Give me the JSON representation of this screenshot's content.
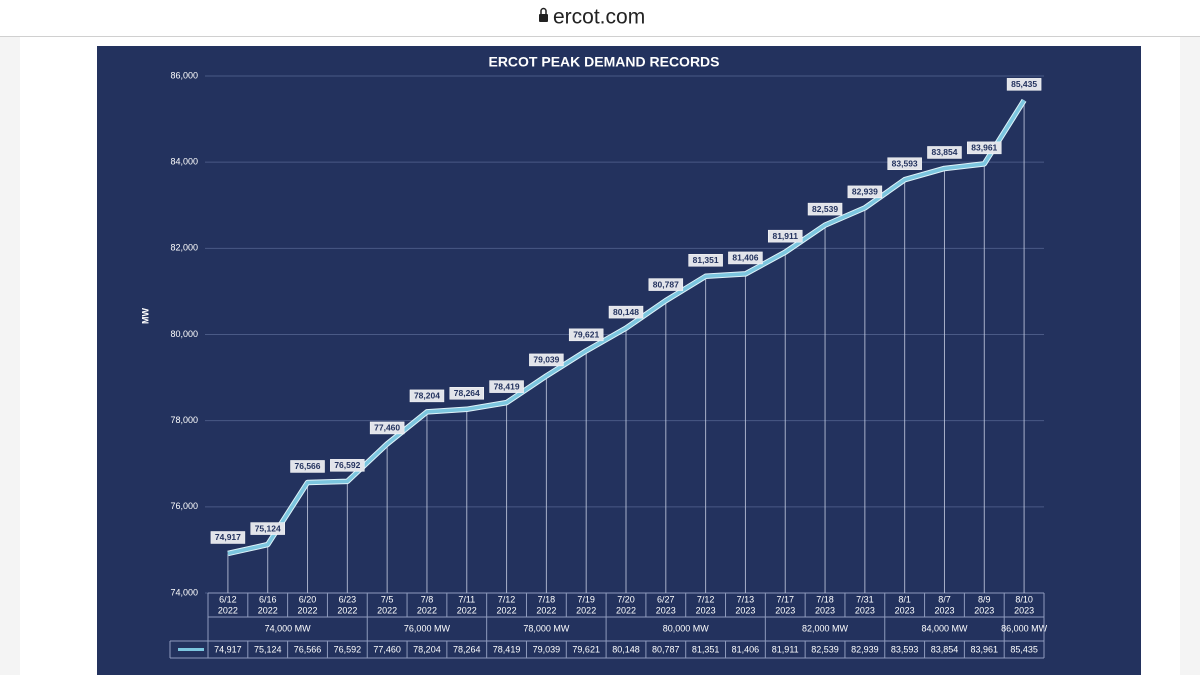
{
  "browser": {
    "url": "ercot.com"
  },
  "chart_data": {
    "type": "line",
    "title": "ERCOT PEAK DEMAND RECORDS",
    "ylabel": "MW",
    "categories": [
      "6/12",
      "6/16",
      "6/20",
      "6/23",
      "7/5",
      "7/8",
      "7/11",
      "7/12",
      "7/18",
      "7/19",
      "7/20",
      "6/27",
      "7/12",
      "7/13",
      "7/17",
      "7/18",
      "7/31",
      "8/1",
      "8/7",
      "8/9",
      "8/10"
    ],
    "category_years": [
      "2022",
      "2022",
      "2022",
      "2022",
      "2022",
      "2022",
      "2022",
      "2022",
      "2022",
      "2022",
      "2022",
      "2023",
      "2023",
      "2023",
      "2023",
      "2023",
      "2023",
      "2023",
      "2023",
      "2023",
      "2023"
    ],
    "groups": [
      "74,000 MW",
      null,
      null,
      null,
      "76,000 MW",
      null,
      null,
      "78,000 MW",
      null,
      null,
      "80,000 MW",
      null,
      null,
      null,
      "82,000 MW",
      null,
      null,
      "84,000 MW",
      null,
      null,
      "86,000 MW"
    ],
    "values": [
      74917,
      75124,
      76566,
      76592,
      77460,
      78204,
      78264,
      78419,
      79039,
      79621,
      80148,
      80787,
      81351,
      81406,
      81911,
      82539,
      82939,
      83593,
      83854,
      83961,
      85435
    ],
    "value_labels": [
      "74,917",
      "75,124",
      "76,566",
      "76,592",
      "77,460",
      "78,204",
      "78,264",
      "78,419",
      "79,039",
      "79,621",
      "80,148",
      "80,787",
      "81,351",
      "81,406",
      "81,911",
      "82,539",
      "82,939",
      "83,593",
      "83,854",
      "83,961",
      "85,435"
    ],
    "color": "#7cc6df",
    "ylim": [
      74000,
      86000
    ],
    "yticks": [
      {
        "value": 74000,
        "label": "74,000"
      },
      {
        "value": 76000,
        "label": "76,000"
      },
      {
        "value": 78000,
        "label": "78,000"
      },
      {
        "value": 80000,
        "label": "80,000"
      },
      {
        "value": 82000,
        "label": "82,000"
      },
      {
        "value": 84000,
        "label": "84,000"
      },
      {
        "value": 86000,
        "label": "86,000"
      }
    ],
    "grid": true
  }
}
